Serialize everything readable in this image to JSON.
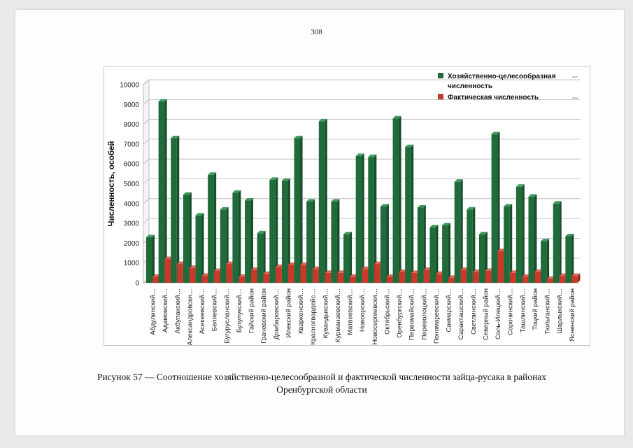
{
  "page": {
    "number": "308"
  },
  "caption": {
    "line1": "Рисунок 57 — Соотношение хозяйственно-целесообразной и фактической численности зайца-русака в районах",
    "line2": "Оренбургской области"
  },
  "colors": {
    "series1": "#1f6b3a",
    "series2": "#c8392b",
    "grid": "#b5b5b5"
  },
  "chart_data": {
    "type": "bar",
    "title": "",
    "xlabel": "",
    "ylabel": "Численность, особей",
    "ylim": [
      0,
      10000
    ],
    "yticks": [
      0,
      1000,
      2000,
      3000,
      4000,
      5000,
      6000,
      7000,
      8000,
      9000,
      10000
    ],
    "grid": true,
    "legend": "top-right",
    "categories": [
      "Абдулинский…",
      "Адамовский…",
      "Акбулакский…",
      "Александровски…",
      "Асекеевский…",
      "Беляевский…",
      "Бугурусланский…",
      "Бузулукский…",
      "Гайский район",
      "Грачевский район",
      "Домбаровский…",
      "Илекский район",
      "Кваркенский…",
      "Красногвардейс…",
      "Кувандыкский…",
      "Курманаевский…",
      "Матвеевский…",
      "Новоорский…",
      "Новосергиевски…",
      "Октябрьский…",
      "Оренбургский…",
      "Первомайский…",
      "Переволоцкий…",
      "Пономаревский…",
      "Сакмарский…",
      "Саракташский…",
      "Светлинский…",
      "Северный район",
      "Соль-Илецкий…",
      "Сорочинский…",
      "Ташлинский…",
      "Тоцкий район",
      "Тюльганский…",
      "Шарлыкский…",
      "Ясненский район"
    ],
    "series": [
      {
        "name": "Хозяйственно-целесообразная численность",
        "values": [
          2300,
          9150,
          7300,
          4450,
          3400,
          5450,
          3700,
          4550,
          4150,
          2500,
          5200,
          5150,
          7300,
          4100,
          8150,
          4100,
          2450,
          6400,
          6350,
          3850,
          8300,
          6850,
          3800,
          2800,
          2900,
          5100,
          3700,
          2450,
          7500,
          3850,
          4850,
          4350,
          2100,
          4000,
          2350
        ]
      },
      {
        "name": "Фактическая численность",
        "values": [
          300,
          1200,
          950,
          750,
          350,
          600,
          950,
          300,
          650,
          450,
          800,
          900,
          900,
          700,
          500,
          500,
          300,
          700,
          950,
          300,
          550,
          500,
          650,
          450,
          250,
          650,
          550,
          600,
          1600,
          500,
          300,
          550,
          200,
          350,
          350
        ]
      }
    ]
  }
}
